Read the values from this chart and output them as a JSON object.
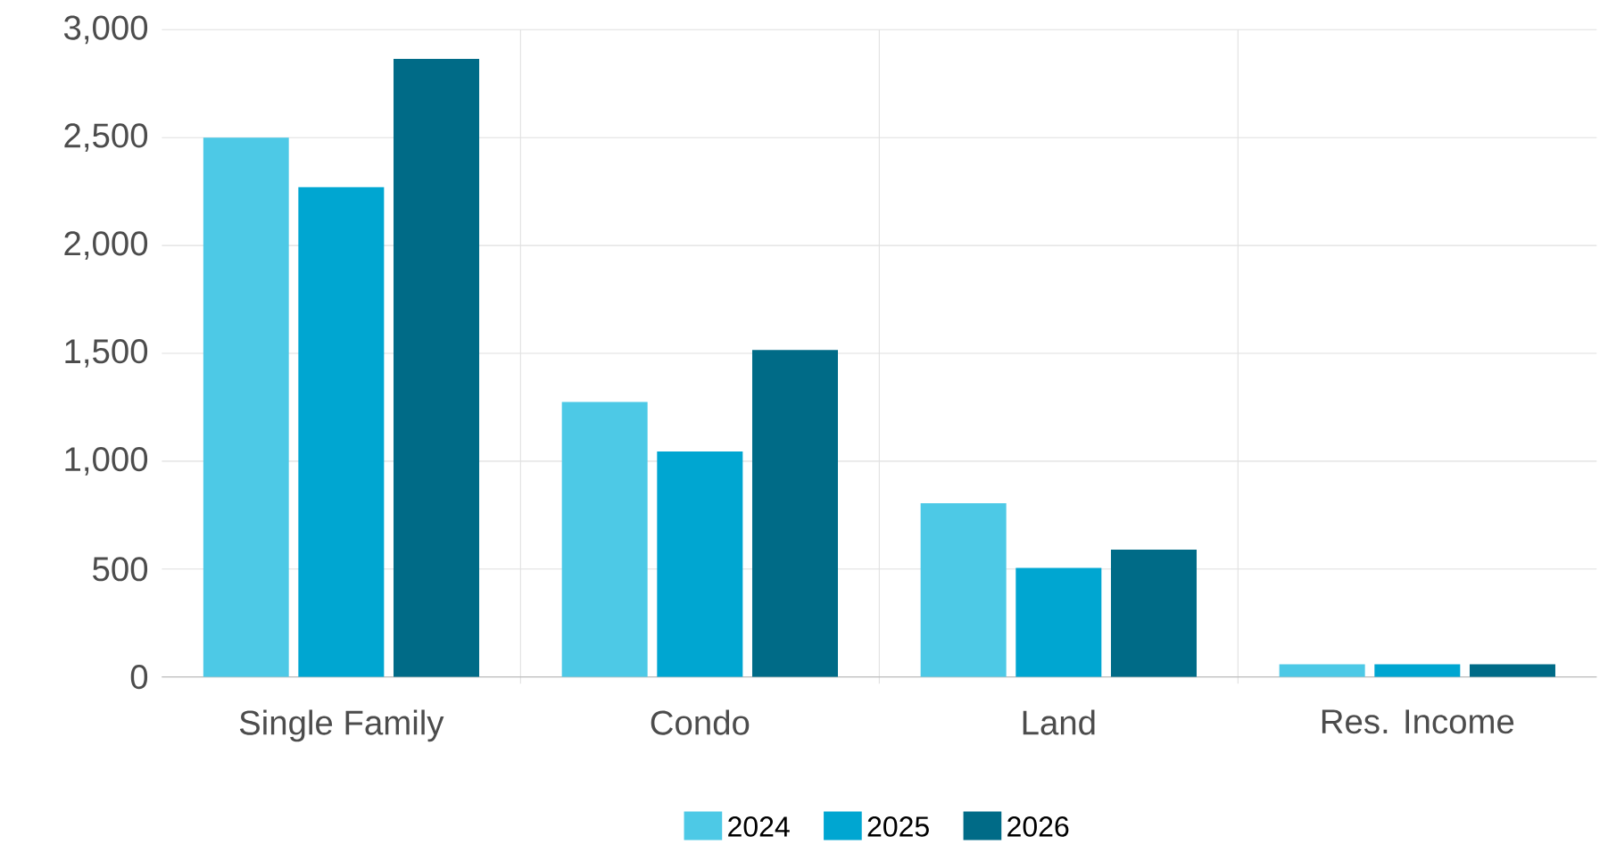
{
  "chart_data": {
    "type": "bar",
    "categories": [
      "Single Family",
      "Condo",
      "Land",
      "Res. Income"
    ],
    "series": [
      {
        "name": "2024",
        "color": "#4dc9e6",
        "values": [
          2500,
          1275,
          805,
          58
        ]
      },
      {
        "name": "2025",
        "color": "#00a6d1",
        "values": [
          2270,
          1045,
          505,
          58
        ]
      },
      {
        "name": "2026",
        "color": "#006b87",
        "values": [
          2865,
          1515,
          590,
          58
        ]
      }
    ],
    "ylim": [
      0,
      3000
    ],
    "yticks": [
      {
        "value": 0,
        "label": "0"
      },
      {
        "value": 500,
        "label": "500"
      },
      {
        "value": 1000,
        "label": "1,000"
      },
      {
        "value": 1500,
        "label": "1,500"
      },
      {
        "value": 2000,
        "label": "2,000"
      },
      {
        "value": 2500,
        "label": "2,500"
      },
      {
        "value": 3000,
        "label": "3,000"
      }
    ],
    "grid": true,
    "legend": "bottom"
  }
}
